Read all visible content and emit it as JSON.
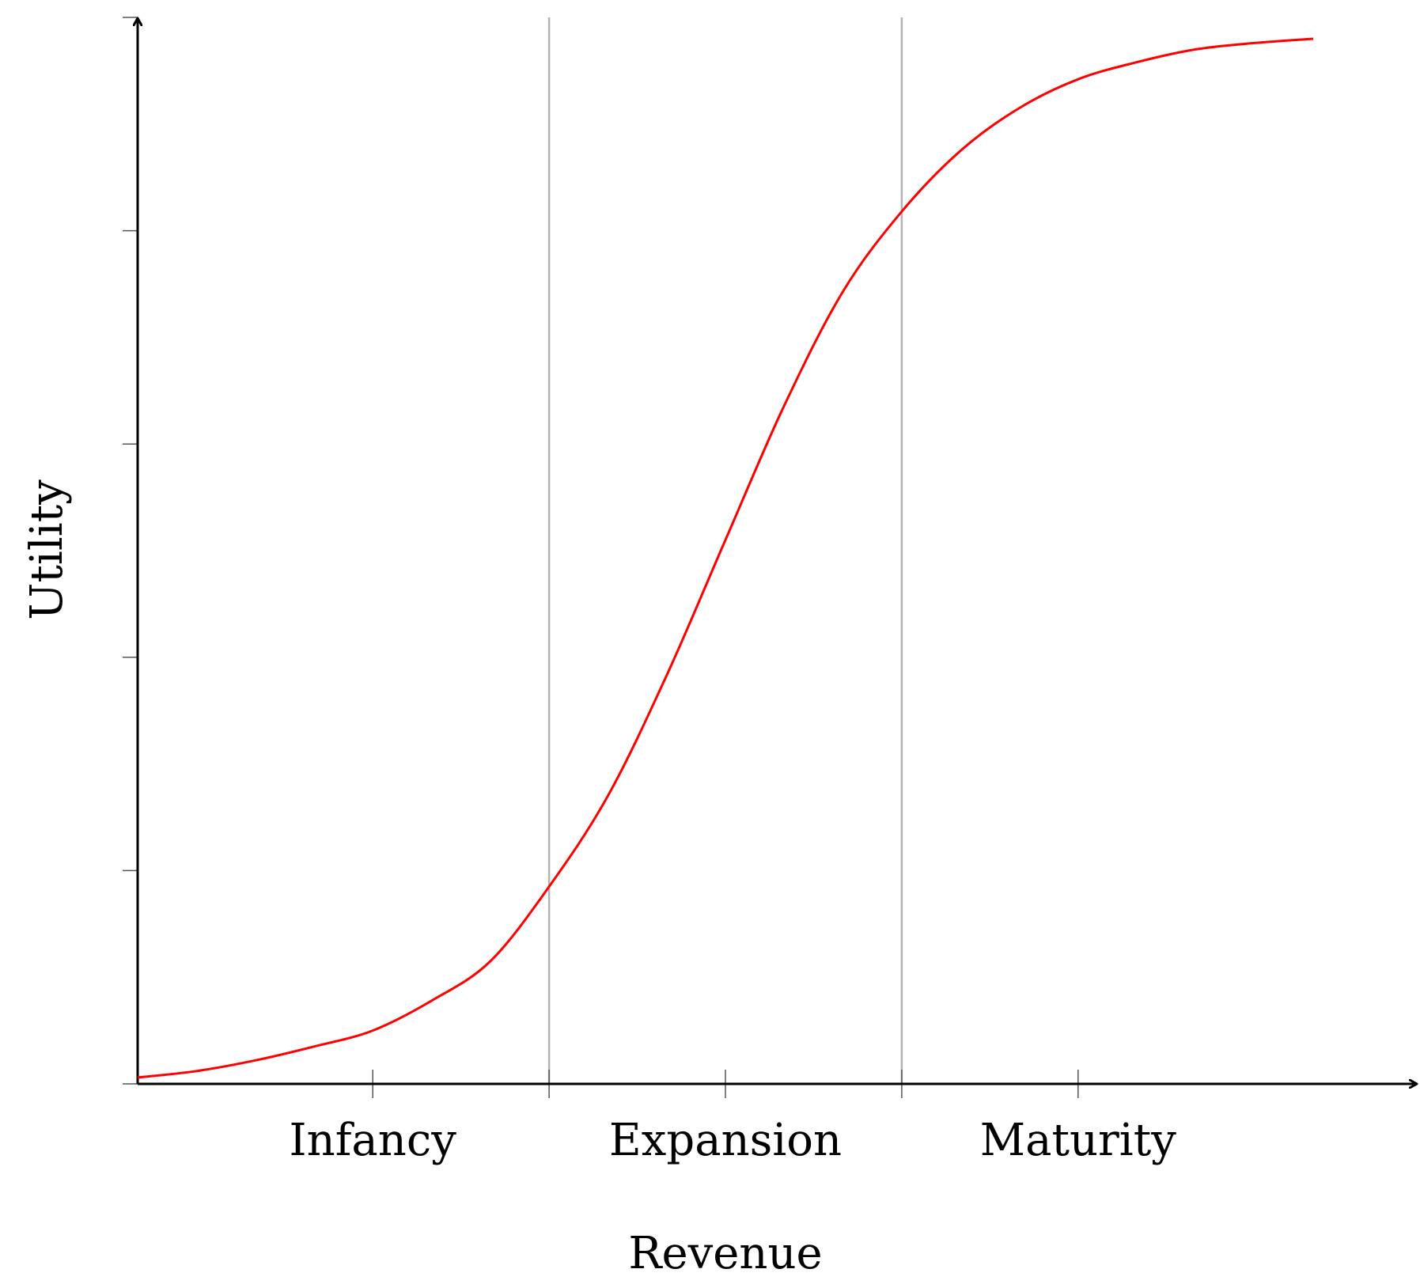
{
  "chart_data": {
    "type": "line",
    "title": "",
    "xlabel": "Revenue",
    "ylabel": "Utility",
    "xlim": [
      0,
      1
    ],
    "ylim": [
      0,
      1
    ],
    "grid": false,
    "stage_boundaries": [
      0.35,
      0.65
    ],
    "categories": [
      "Infancy",
      "Expansion",
      "Maturity"
    ],
    "category_positions": [
      0.2,
      0.5,
      0.8
    ],
    "x_ticks": [
      0.2,
      0.35,
      0.5,
      0.65,
      0.8
    ],
    "y_ticks": [
      0,
      0.2,
      0.4,
      0.6,
      0.8,
      1.0
    ],
    "series": [
      {
        "color": "#ff0000",
        "x": [
          0.0,
          0.05,
          0.1,
          0.15,
          0.2,
          0.25,
          0.3,
          0.35,
          0.4,
          0.45,
          0.5,
          0.55,
          0.6,
          0.65,
          0.7,
          0.75,
          0.8,
          0.85,
          0.9,
          0.95,
          1.0
        ],
        "y": [
          0.006,
          0.012,
          0.022,
          0.035,
          0.05,
          0.078,
          0.115,
          0.185,
          0.27,
          0.383,
          0.51,
          0.636,
          0.743,
          0.818,
          0.875,
          0.915,
          0.942,
          0.958,
          0.97,
          0.976,
          0.98
        ]
      }
    ],
    "colors": {
      "axis": "#000000",
      "boundary": "#b3b3b3",
      "tick": "#555555"
    }
  }
}
